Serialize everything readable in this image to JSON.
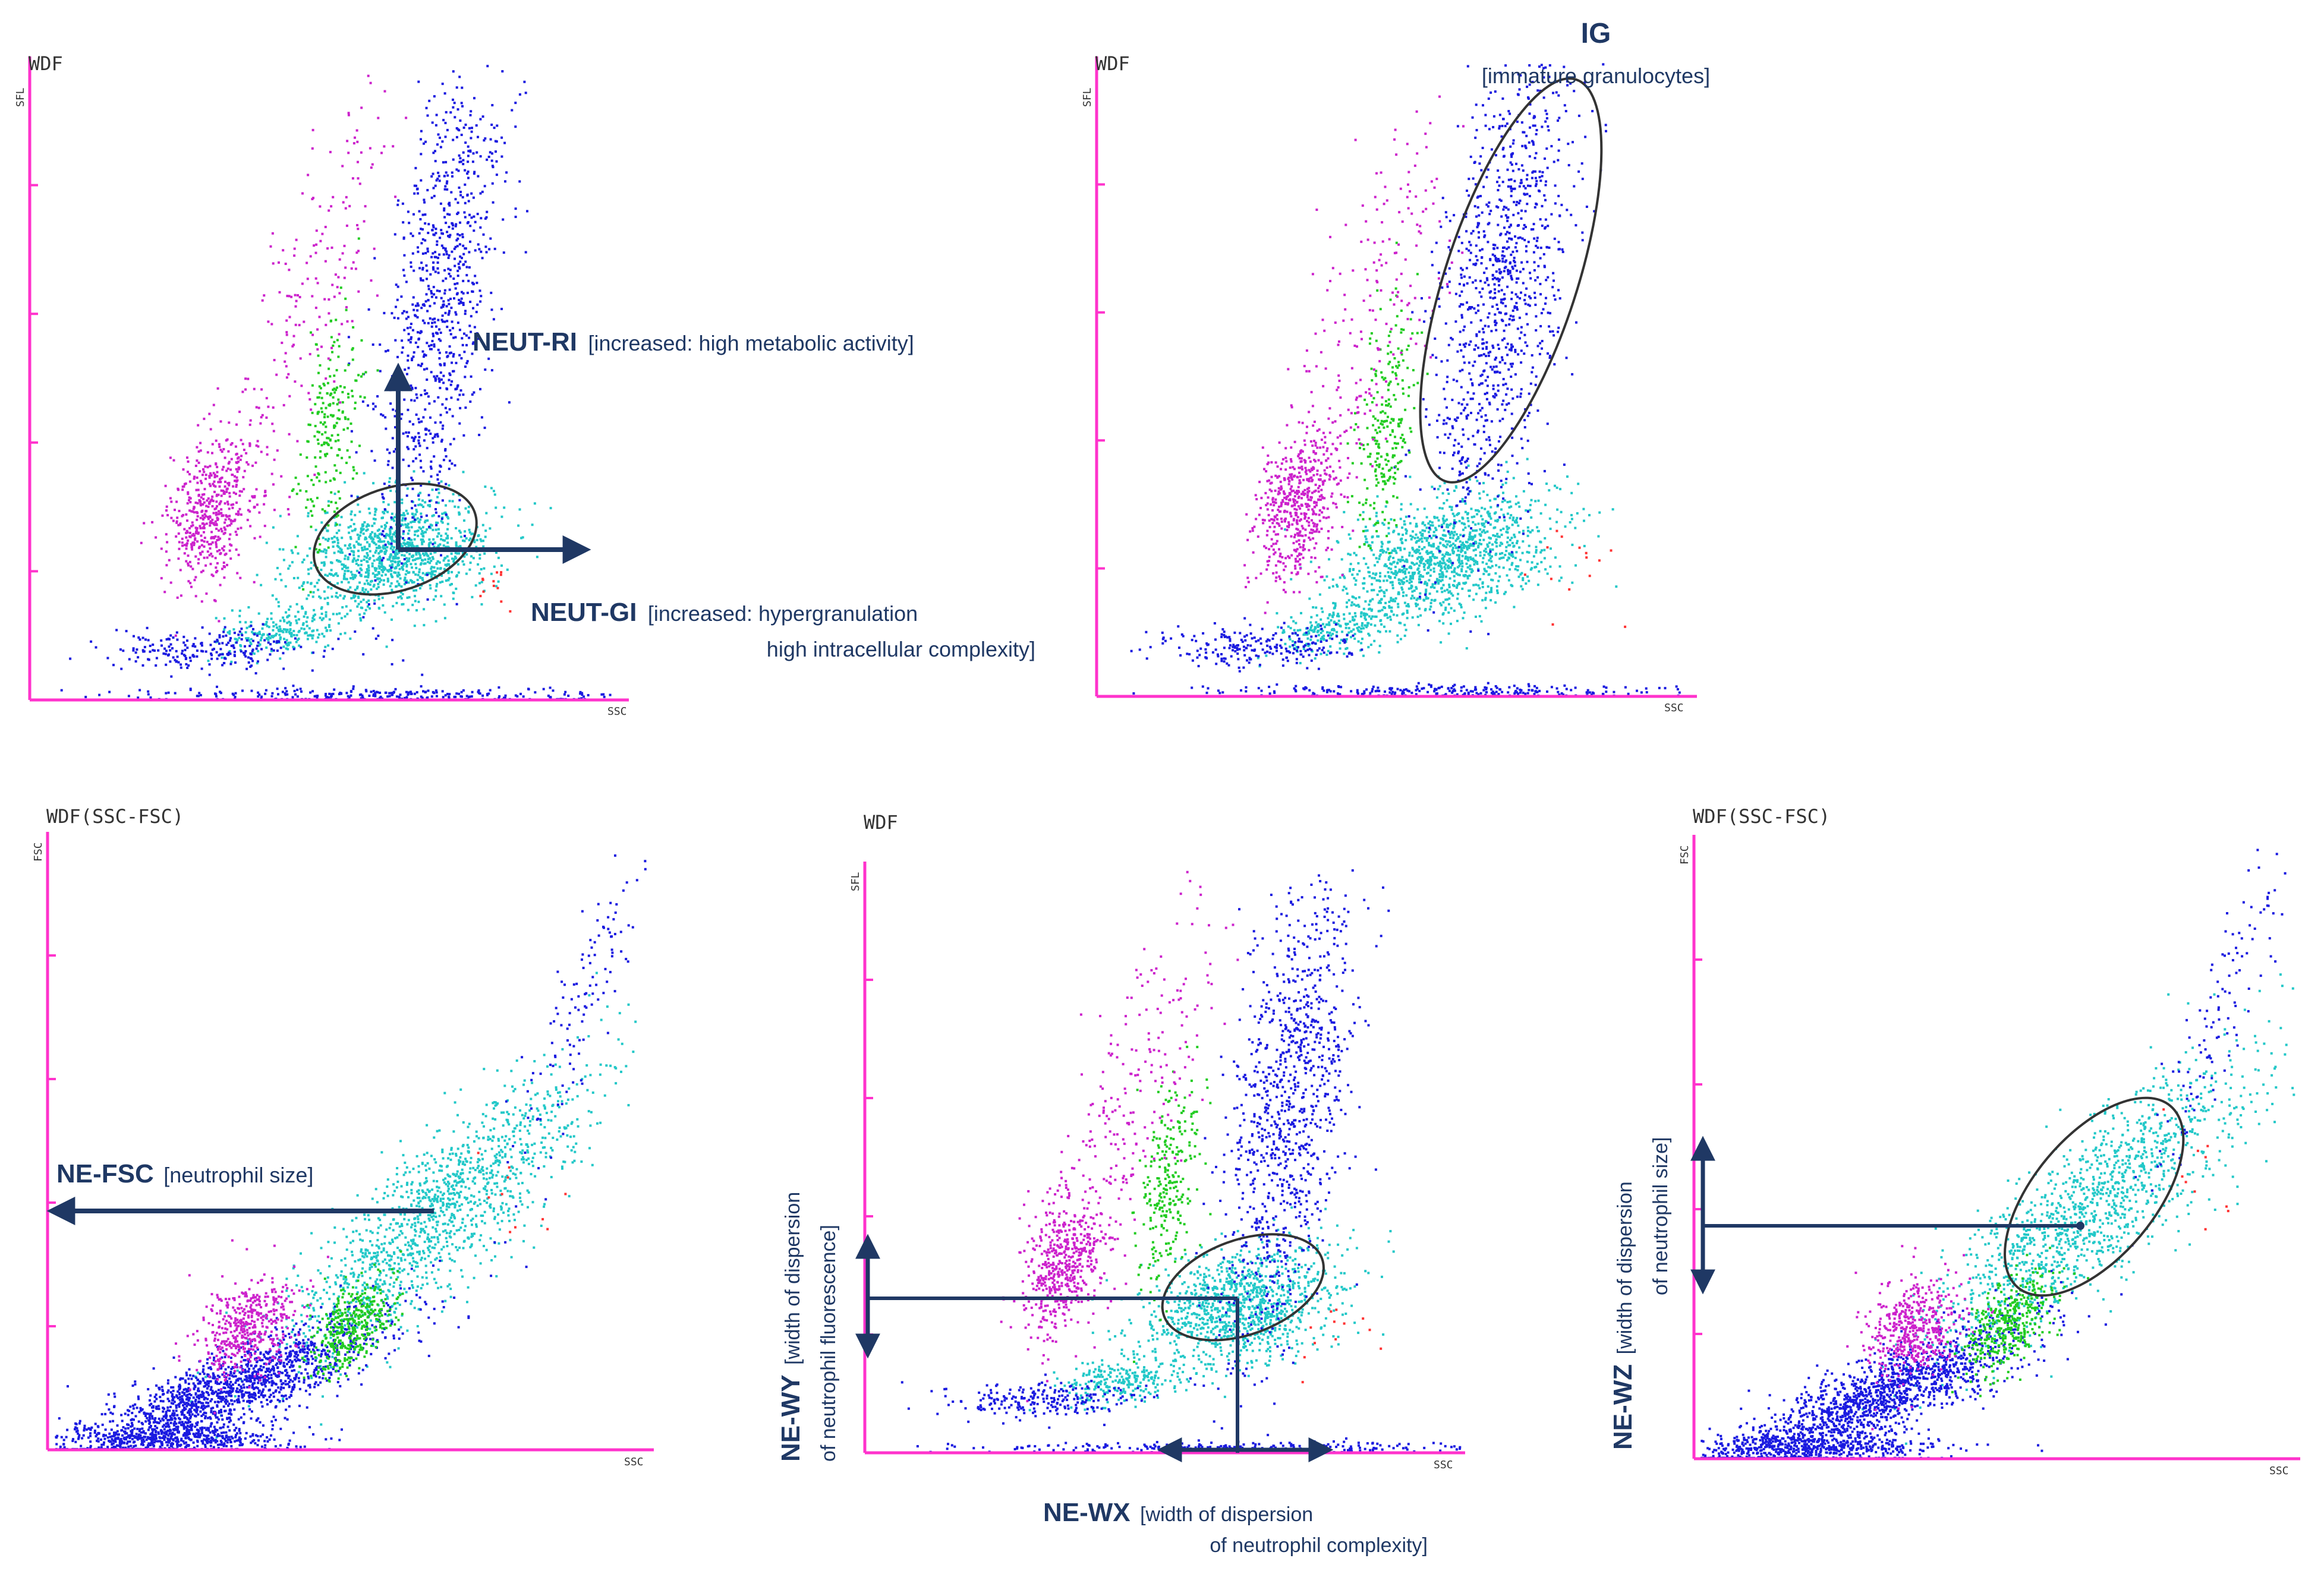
{
  "colors": {
    "axis": "#ff33cc",
    "annotation": "#1f3864",
    "ellipse": "#333333",
    "neutrophil": "#22c8c8",
    "lymphocyte": "#1a1ae0",
    "monocyte": "#cc22cc",
    "eosinophil": "#22cc22",
    "immature_granulocyte": "#1a1ae0",
    "debris": "#1a1ae0",
    "other": "#ff3333"
  },
  "chart_data": [
    {
      "id": "panel-neut-ri-gi",
      "type": "scatter",
      "title": "WDF",
      "xlabel": "SSC",
      "ylabel": "SFL",
      "xlim": [
        0,
        100
      ],
      "ylim": [
        0,
        100
      ],
      "y_ticks": [
        20,
        40,
        60,
        80
      ],
      "clusters": [
        {
          "name": "neutrophils",
          "color_key": "neutrophil",
          "count": 1100,
          "cx": 61,
          "cy": 23,
          "sx": 8,
          "sy": 4.5,
          "rho": 0.25
        },
        {
          "name": "neutrophil tail",
          "color_key": "neutrophil",
          "count": 220,
          "cx": 42,
          "cy": 11,
          "sx": 5,
          "sy": 2,
          "rho": 0.3
        },
        {
          "name": "immature granulocytes",
          "color_key": "immature_granulocyte",
          "count": 900,
          "cx": 68,
          "cy": 60,
          "sx": 5.5,
          "sy": 20,
          "rho": 0.55
        },
        {
          "name": "eosinophils",
          "color_key": "eosinophil",
          "count": 220,
          "cx": 50,
          "cy": 42,
          "sx": 2.5,
          "sy": 9,
          "rho": 0.45
        },
        {
          "name": "monocytes",
          "color_key": "monocyte",
          "count": 500,
          "cx": 30,
          "cy": 30,
          "sx": 3.5,
          "sy": 6,
          "rho": 0.3
        },
        {
          "name": "monocyte spread",
          "color_key": "monocyte",
          "count": 220,
          "cx": 45,
          "cy": 58,
          "sx": 7,
          "sy": 17,
          "rho": 0.75
        },
        {
          "name": "lymphocytes",
          "color_key": "lymphocyte",
          "count": 220,
          "cx": 30,
          "cy": 8,
          "sx": 8,
          "sy": 1.5,
          "rho": 0
        },
        {
          "name": "debris baseline",
          "color_key": "debris",
          "count": 260,
          "cx": 60,
          "cy": 1,
          "sx": 22,
          "sy": 0.5,
          "rho": 0
        },
        {
          "name": "other cells",
          "color_key": "other",
          "count": 12,
          "cx": 78,
          "cy": 18,
          "sx": 3,
          "sy": 2,
          "rho": 0
        }
      ],
      "ellipses": [
        {
          "cx": 61,
          "cy": 25,
          "rx": 14,
          "ry": 8,
          "angle": -18
        }
      ],
      "annotations": [
        {
          "id": "neut-ri",
          "bold": "NEUT-RI",
          "text": "[increased: high metabolic activity]"
        },
        {
          "id": "neut-gi",
          "bold": "NEUT-GI",
          "text": "[increased: hypergranulation",
          "text2": "high intracellular complexity]"
        }
      ]
    },
    {
      "id": "panel-ig",
      "type": "scatter",
      "title": "WDF",
      "xlabel": "SSC",
      "ylabel": "SFL",
      "xlim": [
        0,
        100
      ],
      "ylim": [
        0,
        100
      ],
      "y_ticks": [
        20,
        40,
        60,
        80
      ],
      "clusters": [
        {
          "name": "neutrophils",
          "color_key": "neutrophil",
          "count": 1200,
          "cx": 58,
          "cy": 22,
          "sx": 9,
          "sy": 5,
          "rho": 0.45
        },
        {
          "name": "neutrophil tail",
          "color_key": "neutrophil",
          "count": 220,
          "cx": 40,
          "cy": 11,
          "sx": 5,
          "sy": 2,
          "rho": 0.3
        },
        {
          "name": "immature granulocytes",
          "color_key": "immature_granulocyte",
          "count": 1000,
          "cx": 67,
          "cy": 63,
          "sx": 6,
          "sy": 20,
          "rho": 0.55
        },
        {
          "name": "eosinophils",
          "color_key": "eosinophil",
          "count": 240,
          "cx": 48,
          "cy": 42,
          "sx": 2.5,
          "sy": 9,
          "rho": 0.45
        },
        {
          "name": "monocytes",
          "color_key": "monocyte",
          "count": 520,
          "cx": 33,
          "cy": 30,
          "sx": 3.5,
          "sy": 5.5,
          "rho": 0.3
        },
        {
          "name": "monocyte spread",
          "color_key": "monocyte",
          "count": 220,
          "cx": 45,
          "cy": 58,
          "sx": 7,
          "sy": 17,
          "rho": 0.75
        },
        {
          "name": "lymphocytes",
          "color_key": "lymphocyte",
          "count": 220,
          "cx": 27,
          "cy": 8,
          "sx": 8,
          "sy": 1.5,
          "rho": 0
        },
        {
          "name": "debris baseline",
          "color_key": "debris",
          "count": 260,
          "cx": 60,
          "cy": 1,
          "sx": 22,
          "sy": 0.5,
          "rho": 0
        },
        {
          "name": "other cells",
          "color_key": "other",
          "count": 14,
          "cx": 80,
          "cy": 20,
          "sx": 4,
          "sy": 4,
          "rho": 0
        }
      ],
      "ellipses": [
        {
          "cx": 69,
          "cy": 65,
          "rx": 11,
          "ry": 33,
          "angle": 18
        }
      ],
      "annotations": [
        {
          "id": "ig",
          "bold": "IG",
          "text": "[immature granulocytes]"
        }
      ]
    },
    {
      "id": "panel-ne-fsc",
      "type": "scatter",
      "title": "WDF(SSC-FSC)",
      "xlabel": "SSC",
      "ylabel": "FSC",
      "xlim": [
        0,
        100
      ],
      "ylim": [
        0,
        100
      ],
      "y_ticks": [
        20,
        40,
        60,
        80
      ],
      "clusters": [
        {
          "name": "neutrophils",
          "color_key": "neutrophil",
          "count": 1300,
          "cx": 63,
          "cy": 37,
          "sx": 13,
          "sy": 12,
          "rho": 0.85
        },
        {
          "name": "lymphocyte diagonal",
          "color_key": "lymphocyte",
          "count": 1500,
          "cx": 30,
          "cy": 10,
          "sx": 13,
          "sy": 6,
          "rho": 0.85
        },
        {
          "name": "lymphocyte baseline",
          "color_key": "lymphocyte",
          "count": 500,
          "cx": 20,
          "cy": 2,
          "sx": 10,
          "sy": 1.2,
          "rho": 0
        },
        {
          "name": "monocytes",
          "color_key": "monocyte",
          "count": 450,
          "cx": 33,
          "cy": 20,
          "sx": 4,
          "sy": 4,
          "rho": 0.3
        },
        {
          "name": "eosinophils",
          "color_key": "eosinophil",
          "count": 380,
          "cx": 50,
          "cy": 20,
          "sx": 3.5,
          "sy": 4,
          "rho": 0.6
        },
        {
          "name": "upper tail",
          "color_key": "lymphocyte",
          "count": 120,
          "cx": 88,
          "cy": 72,
          "sx": 6,
          "sy": 14,
          "rho": 0.9
        },
        {
          "name": "other cells",
          "color_key": "other",
          "count": 10,
          "cx": 80,
          "cy": 42,
          "sx": 5,
          "sy": 6,
          "rho": 0
        }
      ],
      "ellipses": [],
      "annotations": [
        {
          "id": "ne-fsc",
          "bold": "NE-FSC",
          "text": "[neutrophil size]"
        }
      ]
    },
    {
      "id": "panel-ne-wy-wx",
      "type": "scatter",
      "title": "WDF",
      "xlabel": "SSC",
      "ylabel": "SFL",
      "xlim": [
        0,
        100
      ],
      "ylim": [
        0,
        100
      ],
      "y_ticks": [
        20,
        40,
        60,
        80
      ],
      "clusters": [
        {
          "name": "neutrophils",
          "color_key": "neutrophil",
          "count": 1100,
          "cx": 62,
          "cy": 25,
          "sx": 8,
          "sy": 5,
          "rho": 0.3
        },
        {
          "name": "neutrophil tail",
          "color_key": "neutrophil",
          "count": 220,
          "cx": 42,
          "cy": 12,
          "sx": 5,
          "sy": 2,
          "rho": 0.3
        },
        {
          "name": "immature granulocytes",
          "color_key": "immature_granulocyte",
          "count": 1000,
          "cx": 70,
          "cy": 58,
          "sx": 5.5,
          "sy": 21,
          "rho": 0.5
        },
        {
          "name": "eosinophils",
          "color_key": "eosinophil",
          "count": 260,
          "cx": 50,
          "cy": 45,
          "sx": 2.5,
          "sy": 9,
          "rho": 0.45
        },
        {
          "name": "monocytes",
          "color_key": "monocyte",
          "count": 520,
          "cx": 33,
          "cy": 32,
          "sx": 3.5,
          "sy": 6,
          "rho": 0.3
        },
        {
          "name": "monocyte spread",
          "color_key": "monocyte",
          "count": 220,
          "cx": 45,
          "cy": 60,
          "sx": 7,
          "sy": 17,
          "rho": 0.75
        },
        {
          "name": "lymphocytes",
          "color_key": "lymphocyte",
          "count": 220,
          "cx": 30,
          "cy": 9,
          "sx": 8,
          "sy": 1.5,
          "rho": 0
        },
        {
          "name": "debris baseline",
          "color_key": "debris",
          "count": 260,
          "cx": 60,
          "cy": 1,
          "sx": 22,
          "sy": 0.5,
          "rho": 0
        },
        {
          "name": "other cells",
          "color_key": "other",
          "count": 12,
          "cx": 78,
          "cy": 20,
          "sx": 3,
          "sy": 3,
          "rho": 0
        }
      ],
      "ellipses": [
        {
          "cx": 63,
          "cy": 28,
          "rx": 14,
          "ry": 8,
          "angle": -20
        }
      ],
      "annotations": [
        {
          "id": "ne-wy",
          "bold": "NE-WY",
          "text": "[width of dispersion",
          "text2": "of neutrophil fluorescence]"
        },
        {
          "id": "ne-wx",
          "bold": "NE-WX",
          "text": "[width of dispersion",
          "text2": "of neutrophil complexity]"
        }
      ]
    },
    {
      "id": "panel-ne-wz",
      "type": "scatter",
      "title": "WDF(SSC-FSC)",
      "xlabel": "SSC",
      "ylabel": "FSC",
      "xlim": [
        0,
        100
      ],
      "ylim": [
        0,
        100
      ],
      "y_ticks": [
        20,
        40,
        60,
        80
      ],
      "clusters": [
        {
          "name": "neutrophils",
          "color_key": "neutrophil",
          "count": 1300,
          "cx": 65,
          "cy": 40,
          "sx": 13,
          "sy": 12,
          "rho": 0.85
        },
        {
          "name": "lymphocyte diagonal",
          "color_key": "lymphocyte",
          "count": 1500,
          "cx": 30,
          "cy": 10,
          "sx": 13,
          "sy": 6,
          "rho": 0.85
        },
        {
          "name": "lymphocyte baseline",
          "color_key": "lymphocyte",
          "count": 500,
          "cx": 20,
          "cy": 2,
          "sx": 10,
          "sy": 1.2,
          "rho": 0
        },
        {
          "name": "monocytes",
          "color_key": "monocyte",
          "count": 450,
          "cx": 36,
          "cy": 21,
          "sx": 4,
          "sy": 4,
          "rho": 0.3
        },
        {
          "name": "eosinophils",
          "color_key": "eosinophil",
          "count": 380,
          "cx": 52,
          "cy": 22,
          "sx": 3.5,
          "sy": 4,
          "rho": 0.6
        },
        {
          "name": "upper tail",
          "color_key": "lymphocyte",
          "count": 120,
          "cx": 88,
          "cy": 74,
          "sx": 6,
          "sy": 14,
          "rho": 0.9
        },
        {
          "name": "other cells",
          "color_key": "other",
          "count": 10,
          "cx": 82,
          "cy": 45,
          "sx": 5,
          "sy": 6,
          "rho": 0
        }
      ],
      "ellipses": [
        {
          "cx": 66,
          "cy": 42,
          "rx": 10,
          "ry": 19,
          "angle": 40
        }
      ],
      "annotations": [
        {
          "id": "ne-wz",
          "bold": "NE-WZ",
          "text": "[width of dispersion",
          "text2": "of neutrophil size]"
        }
      ]
    }
  ]
}
